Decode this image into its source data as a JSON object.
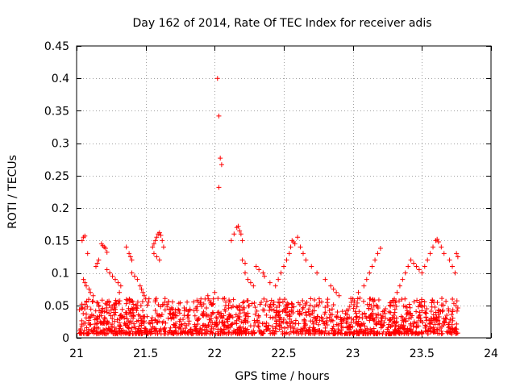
{
  "chart_data": {
    "type": "scatter",
    "title": "Day 162 of 2014, Rate Of TEC Index for receiver adis",
    "xlabel": "GPS time / hours",
    "ylabel": "ROTI / TECUs",
    "xlim": [
      21,
      24
    ],
    "ylim": [
      0,
      0.45
    ],
    "x_ticks": [
      21,
      21.5,
      22,
      22.5,
      23,
      23.5,
      24
    ],
    "x_tick_labels": [
      "21",
      "21.5",
      "22",
      "22.5",
      "23",
      "23.5",
      "24"
    ],
    "y_ticks": [
      0,
      0.05,
      0.1,
      0.15,
      0.2,
      0.25,
      0.3,
      0.35,
      0.4,
      0.45
    ],
    "y_tick_labels": [
      "0",
      "0.05",
      "0.1",
      "0.15",
      "0.2",
      "0.25",
      "0.3",
      "0.35",
      "0.4",
      "0.45"
    ],
    "grid": true,
    "marker": "+",
    "color": "#ff0000",
    "series": [
      {
        "name": "ROTI",
        "x": [
          21.04,
          21.05,
          21.06,
          21.08,
          21.05,
          21.06,
          21.07,
          21.09,
          21.1,
          21.12,
          21.18,
          21.19,
          21.2,
          21.21,
          21.22,
          21.14,
          21.15,
          21.16,
          21.22,
          21.24,
          21.26,
          21.28,
          21.3,
          21.32,
          21.31,
          21.36,
          21.38,
          21.39,
          21.4,
          21.4,
          21.42,
          21.44,
          21.46,
          21.47,
          21.48,
          21.49,
          21.5,
          21.52,
          21.55,
          21.56,
          21.57,
          21.58,
          21.59,
          21.6,
          21.61,
          21.62,
          21.63,
          21.56,
          21.58,
          21.6,
          21.8,
          21.9,
          21.95,
          22.0,
          22.02,
          22.03,
          22.04,
          22.05,
          22.03,
          22.06,
          22.08,
          22.1,
          22.12,
          22.14,
          22.16,
          22.17,
          22.18,
          22.19,
          22.2,
          22.22,
          22.24,
          22.26,
          22.28,
          22.2,
          22.22,
          22.3,
          22.32,
          22.35,
          22.36,
          22.4,
          22.44,
          22.46,
          22.48,
          22.5,
          22.52,
          22.54,
          22.55,
          22.56,
          22.57,
          22.58,
          22.6,
          22.62,
          22.64,
          22.66,
          22.7,
          22.74,
          22.8,
          22.84,
          22.86,
          22.88,
          22.9,
          23.0,
          23.04,
          23.08,
          23.1,
          23.12,
          23.14,
          23.16,
          23.18,
          23.2,
          23.3,
          23.32,
          23.34,
          23.36,
          23.38,
          23.4,
          23.42,
          23.44,
          23.46,
          23.48,
          23.5,
          23.52,
          23.54,
          23.56,
          23.58,
          23.6,
          23.61,
          23.62,
          23.64,
          23.66,
          23.7,
          23.72,
          23.74,
          23.75,
          23.76
        ],
        "y": [
          0.15,
          0.155,
          0.157,
          0.13,
          0.09,
          0.085,
          0.08,
          0.075,
          0.07,
          0.065,
          0.145,
          0.142,
          0.14,
          0.138,
          0.132,
          0.11,
          0.115,
          0.12,
          0.105,
          0.1,
          0.095,
          0.09,
          0.085,
          0.08,
          0.07,
          0.14,
          0.13,
          0.125,
          0.12,
          0.1,
          0.095,
          0.09,
          0.08,
          0.075,
          0.07,
          0.065,
          0.06,
          0.055,
          0.14,
          0.145,
          0.15,
          0.155,
          0.16,
          0.162,
          0.158,
          0.15,
          0.14,
          0.13,
          0.125,
          0.12,
          0.055,
          0.06,
          0.065,
          0.07,
          0.4,
          0.342,
          0.277,
          0.267,
          0.232,
          0.06,
          0.055,
          0.05,
          0.15,
          0.16,
          0.17,
          0.172,
          0.165,
          0.16,
          0.15,
          0.1,
          0.09,
          0.085,
          0.08,
          0.12,
          0.115,
          0.11,
          0.105,
          0.1,
          0.095,
          0.085,
          0.08,
          0.09,
          0.1,
          0.11,
          0.12,
          0.13,
          0.14,
          0.15,
          0.148,
          0.145,
          0.155,
          0.14,
          0.13,
          0.12,
          0.11,
          0.1,
          0.09,
          0.08,
          0.075,
          0.07,
          0.065,
          0.06,
          0.07,
          0.08,
          0.09,
          0.1,
          0.11,
          0.12,
          0.13,
          0.138,
          0.06,
          0.07,
          0.08,
          0.09,
          0.1,
          0.11,
          0.12,
          0.115,
          0.11,
          0.105,
          0.1,
          0.11,
          0.12,
          0.13,
          0.14,
          0.15,
          0.152,
          0.148,
          0.14,
          0.13,
          0.12,
          0.11,
          0.1,
          0.13,
          0.125
        ]
      }
    ]
  }
}
